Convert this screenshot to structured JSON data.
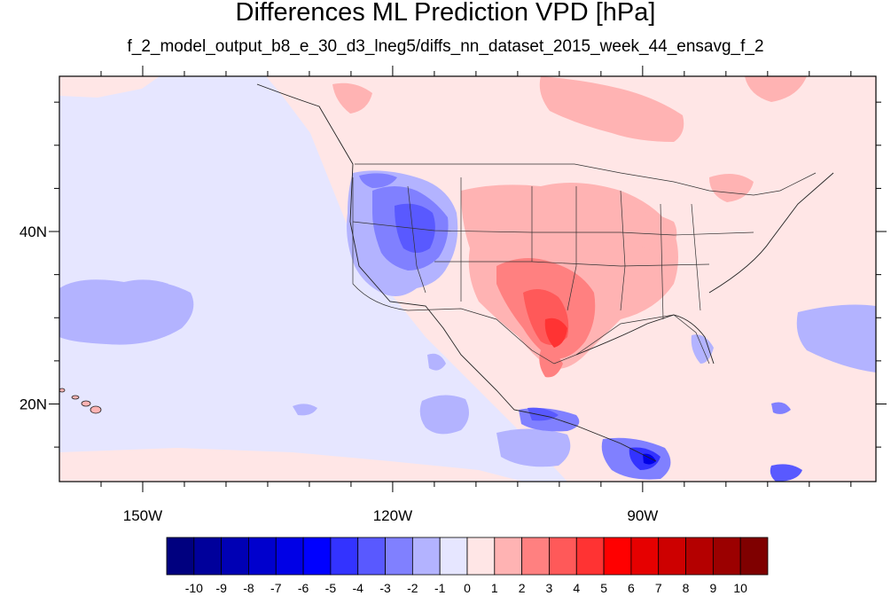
{
  "title": "Differences ML Prediction VPD [hPa]",
  "subtitle": "f_2_model_output_b8_e_30_d3_lneg5/diffs_nn_dataset_2015_week_44_ensavg_f_2",
  "map": {
    "lon_range": [
      -160,
      -62
    ],
    "lat_range": [
      11,
      58
    ],
    "lon_ticks": [
      {
        "value": -150,
        "label": "150W"
      },
      {
        "value": -120,
        "label": "120W"
      },
      {
        "value": -90,
        "label": "90W"
      }
    ],
    "lat_ticks": [
      {
        "value": 40,
        "label": "40N"
      },
      {
        "value": 20,
        "label": "20N"
      }
    ]
  },
  "colorbar": {
    "labels": [
      "-10",
      "-9",
      "-8",
      "-7",
      "-6",
      "-5",
      "-4",
      "-3",
      "-2",
      "-1",
      "0",
      "1",
      "2",
      "3",
      "4",
      "5",
      "6",
      "7",
      "8",
      "9",
      "10"
    ],
    "colors": [
      "#00007f",
      "#00009b",
      "#0000b4",
      "#0000cd",
      "#0000e6",
      "#0000ff",
      "#3333ff",
      "#5959ff",
      "#8080ff",
      "#b3b3ff",
      "#e6e6ff",
      "#ffe6e6",
      "#ffb3b3",
      "#ff8080",
      "#ff5959",
      "#ff3333",
      "#ff0000",
      "#e60000",
      "#cd0000",
      "#b40000",
      "#9b0000",
      "#7f0000"
    ]
  }
}
